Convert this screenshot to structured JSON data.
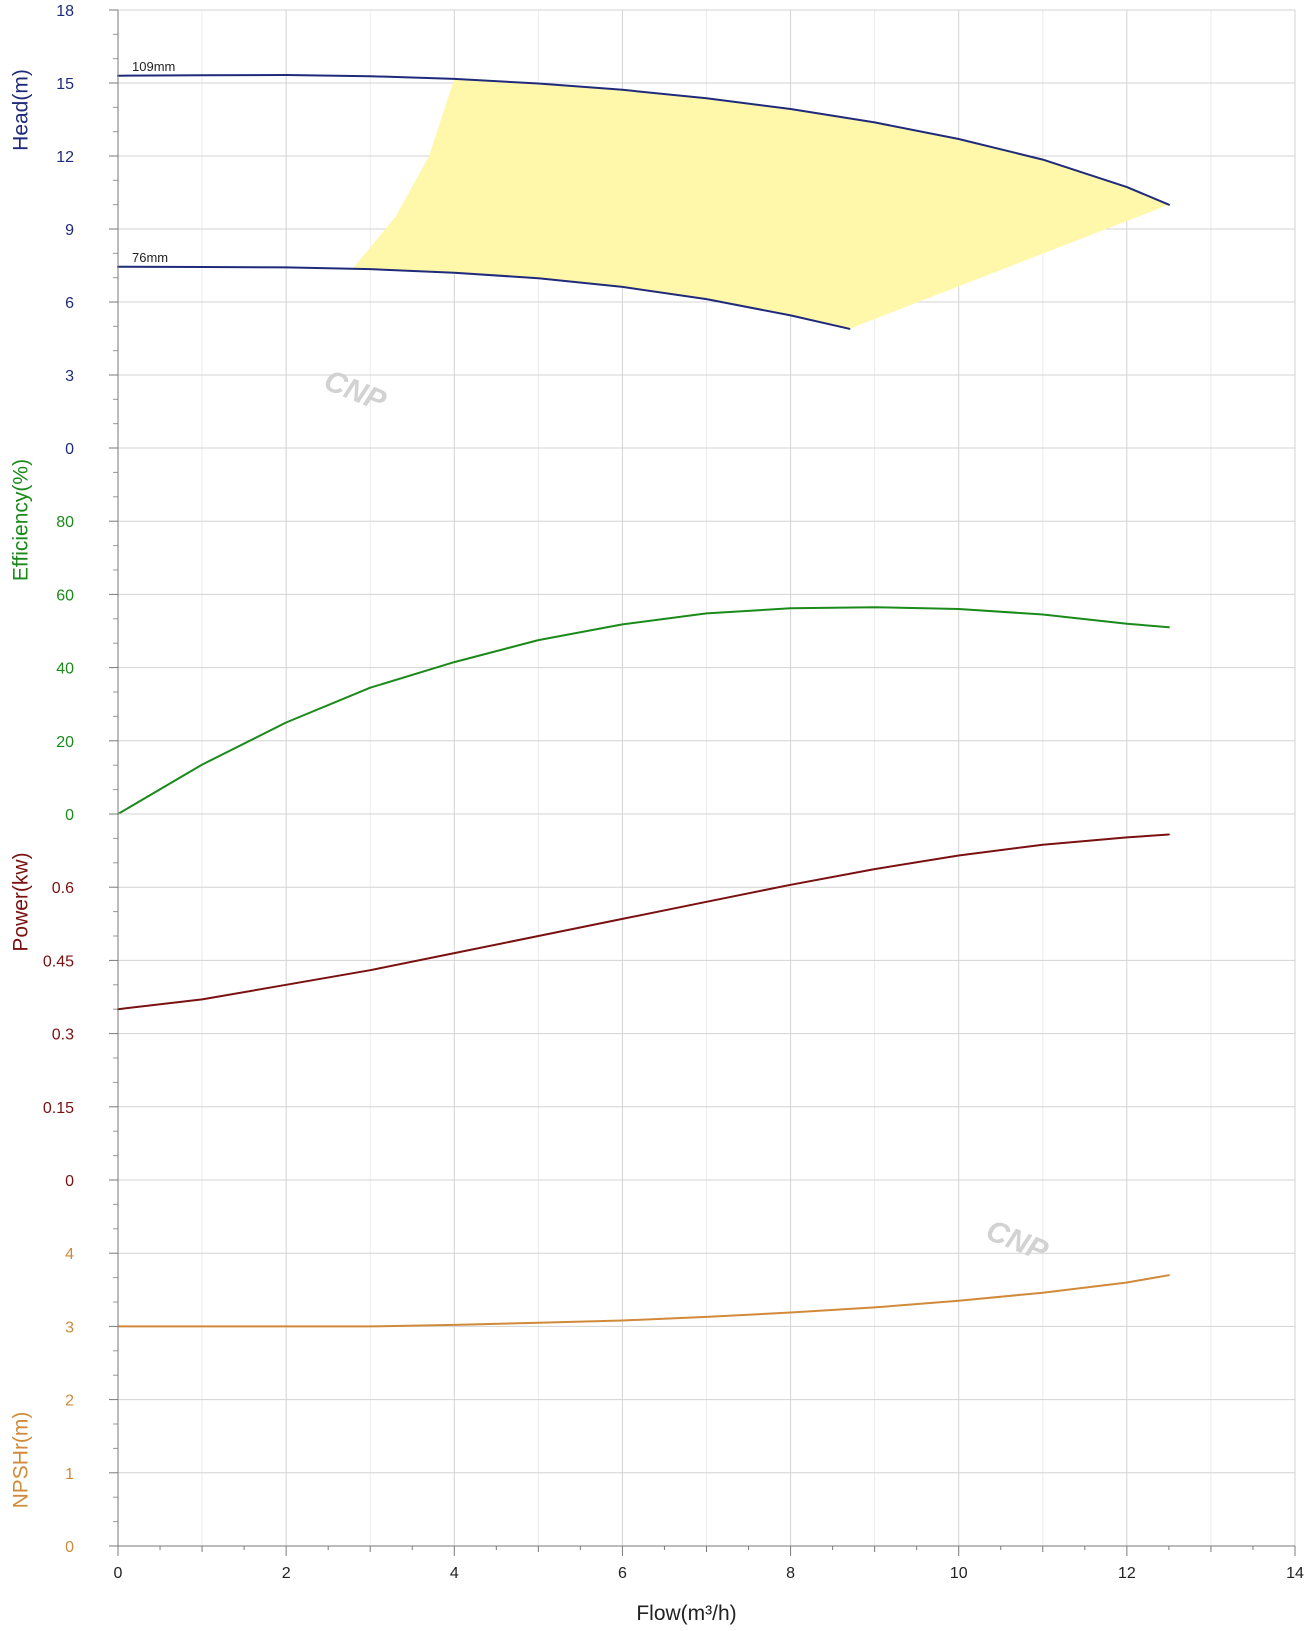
{
  "chart_data": {
    "type": "line",
    "x_label": "Flow(m³/h)",
    "x_range": [
      0,
      14
    ],
    "x_ticks": [
      "0",
      "2",
      "4",
      "6",
      "8",
      "10",
      "12",
      "14"
    ],
    "grid": true,
    "watermark": "CNP",
    "panels": [
      {
        "id": "head",
        "ylabel": "Head(m)",
        "color": "#1f2a7a",
        "ylim": [
          0,
          18
        ],
        "y_ticks": [
          "0",
          "3",
          "6",
          "9",
          "12",
          "15",
          "18"
        ],
        "series": [
          {
            "name": "109mm",
            "x": [
              0,
              1,
              2,
              3,
              4,
              5,
              6,
              7,
              8,
              9,
              10,
              11,
              12,
              12.5
            ],
            "y": [
              15.3,
              15.32,
              15.33,
              15.28,
              15.17,
              14.98,
              14.72,
              14.37,
              13.93,
              13.38,
              12.7,
              11.85,
              10.72,
              10.0
            ]
          },
          {
            "name": "76mm",
            "x": [
              0,
              1,
              2,
              3,
              4,
              5,
              6,
              7,
              8,
              8.7
            ],
            "y": [
              7.45,
              7.44,
              7.42,
              7.35,
              7.2,
              6.98,
              6.62,
              6.12,
              5.45,
              4.9
            ]
          }
        ],
        "operating_region": {
          "color": "#fff7aa",
          "left_edge": {
            "x": [
              2.8,
              3.3,
              3.7,
              4.0
            ],
            "y": [
              7.4,
              9.5,
              12.0,
              15.17
            ]
          },
          "right_edge": {
            "x": [
              12.5,
              8.7
            ],
            "y": [
              10.0,
              4.9
            ]
          }
        }
      },
      {
        "id": "efficiency",
        "ylabel": "Efficiency(%)",
        "color": "#1a8a1a",
        "ylim": [
          0,
          100
        ],
        "y_ticks": [
          "0",
          "20",
          "40",
          "60",
          "80"
        ],
        "series": [
          {
            "name": "",
            "x": [
              0,
              1,
              2,
              3,
              4,
              5,
              6,
              7,
              8,
              9,
              10,
              11,
              12,
              12.5
            ],
            "y": [
              0,
              13.5,
              25,
              34.5,
              41.5,
              47.5,
              51.8,
              54.8,
              56.2,
              56.5,
              56,
              54.5,
              52,
              51
            ]
          }
        ]
      },
      {
        "id": "power",
        "ylabel": "Power(kw)",
        "color": "#7a1010",
        "ylim": [
          0,
          0.75
        ],
        "y_ticks": [
          "0",
          "0.15",
          "0.3",
          "0.45",
          "0.6"
        ],
        "series": [
          {
            "name": "",
            "x": [
              0,
              1,
              2,
              3,
              4,
              5,
              6,
              7,
              8,
              9,
              10,
              11,
              12,
              12.5
            ],
            "y": [
              0.35,
              0.37,
              0.4,
              0.43,
              0.465,
              0.5,
              0.535,
              0.57,
              0.605,
              0.637,
              0.665,
              0.687,
              0.702,
              0.708
            ]
          }
        ]
      },
      {
        "id": "npshr",
        "ylabel": "NPSHr(m)",
        "color": "#d08a3a",
        "ylim": [
          0,
          5
        ],
        "y_ticks": [
          "0",
          "1",
          "2",
          "3",
          "4"
        ],
        "series": [
          {
            "name": "",
            "x": [
              0,
              2,
              3,
              4,
              5,
              6,
              7,
              8,
              9,
              10,
              11,
              12,
              12.5
            ],
            "y": [
              3.0,
              3.0,
              3.0,
              3.02,
              3.05,
              3.08,
              3.13,
              3.19,
              3.26,
              3.35,
              3.46,
              3.6,
              3.7
            ]
          }
        ]
      }
    ]
  }
}
